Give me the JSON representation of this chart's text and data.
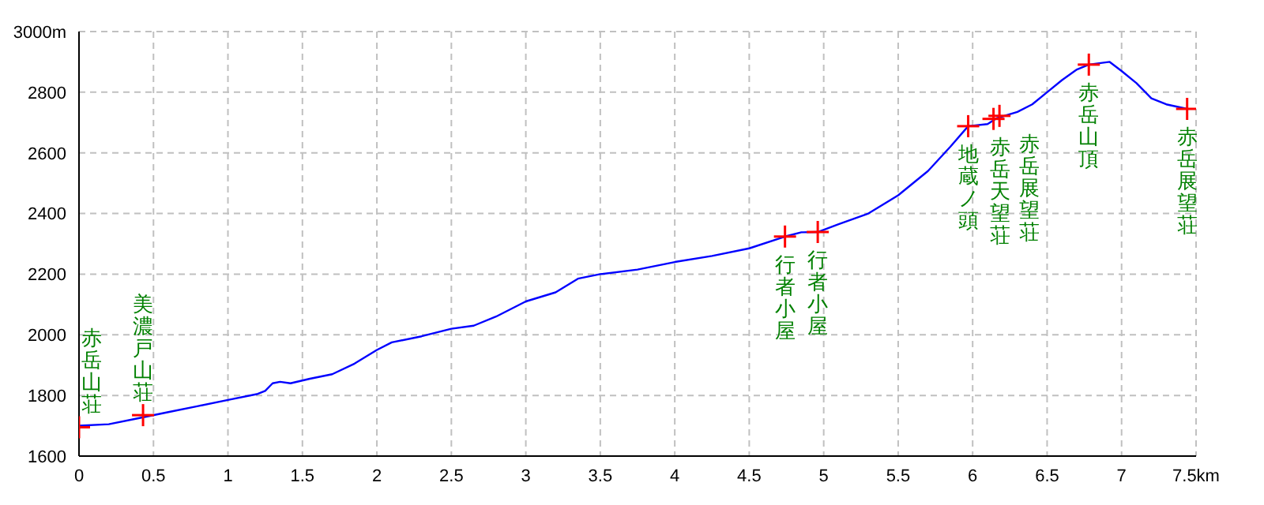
{
  "chart_data": {
    "type": "line",
    "xlim": [
      0,
      7.5
    ],
    "ylim": [
      1600,
      3000
    ],
    "xticks": [
      0,
      0.5,
      1,
      1.5,
      2,
      2.5,
      3,
      3.5,
      4,
      4.5,
      5,
      5.5,
      6,
      6.5,
      7,
      {
        "value": 7.5,
        "label": "7.5km"
      }
    ],
    "yticks": [
      1600,
      1800,
      2000,
      2200,
      2400,
      2600,
      2800,
      {
        "value": 3000,
        "label": "3000m"
      }
    ],
    "grid": true,
    "series": [
      {
        "color": "#0000ff",
        "marker": "none",
        "line_style": "solid",
        "x": [
          0,
          0.2,
          0.4,
          0.6,
          0.8,
          1.0,
          1.2,
          1.25,
          1.3,
          1.35,
          1.42,
          1.55,
          1.7,
          1.85,
          2.0,
          2.1,
          2.3,
          2.5,
          2.65,
          2.8,
          3.0,
          3.2,
          3.35,
          3.5,
          3.75,
          4.0,
          4.25,
          4.5,
          4.74,
          4.85,
          4.96,
          5.1,
          5.3,
          5.5,
          5.7,
          5.85,
          5.97,
          6.1,
          6.16,
          6.3,
          6.4,
          6.5,
          6.6,
          6.7,
          6.78,
          6.92,
          7.0,
          7.1,
          7.2,
          7.3,
          7.44
        ],
        "values": [
          1700,
          1705,
          1725,
          1745,
          1765,
          1785,
          1805,
          1815,
          1840,
          1845,
          1840,
          1855,
          1870,
          1905,
          1950,
          1975,
          1995,
          2020,
          2030,
          2060,
          2110,
          2140,
          2185,
          2200,
          2215,
          2240,
          2260,
          2285,
          2324,
          2338,
          2339,
          2365,
          2400,
          2460,
          2540,
          2620,
          2688,
          2695,
          2714,
          2735,
          2760,
          2800,
          2840,
          2875,
          2891,
          2900,
          2870,
          2830,
          2780,
          2760,
          2745
        ]
      },
      {
        "type": "scatter",
        "color": "#ff0000",
        "marker": "cross",
        "x": [
          0,
          0.43,
          4.74,
          4.96,
          5.97,
          6.14,
          6.18,
          6.78,
          7.44
        ],
        "values": [
          1695,
          1735,
          2324,
          2339,
          2688,
          2712,
          2722,
          2891,
          2745
        ]
      }
    ],
    "annotations": [
      {
        "text": "赤岳山荘",
        "x": 0,
        "y": 1695
      },
      {
        "text": "美濃戸山荘",
        "x": 0.43,
        "y": 1735
      },
      {
        "text": "行者小屋",
        "x": 4.74,
        "y": 2324
      },
      {
        "text": "行者小屋",
        "x": 4.96,
        "y": 2339
      },
      {
        "text": "地蔵ノ頭",
        "x": 5.97,
        "y": 2688
      },
      {
        "text": "赤岳天望荘",
        "x": 6.14,
        "y": 2712
      },
      {
        "text": "赤岳展望荘",
        "x": 6.18,
        "y": 2722
      },
      {
        "text": "赤岳山頂",
        "x": 6.78,
        "y": 2891
      },
      {
        "text": "赤岳展望荘",
        "x": 7.44,
        "y": 2745
      }
    ]
  }
}
